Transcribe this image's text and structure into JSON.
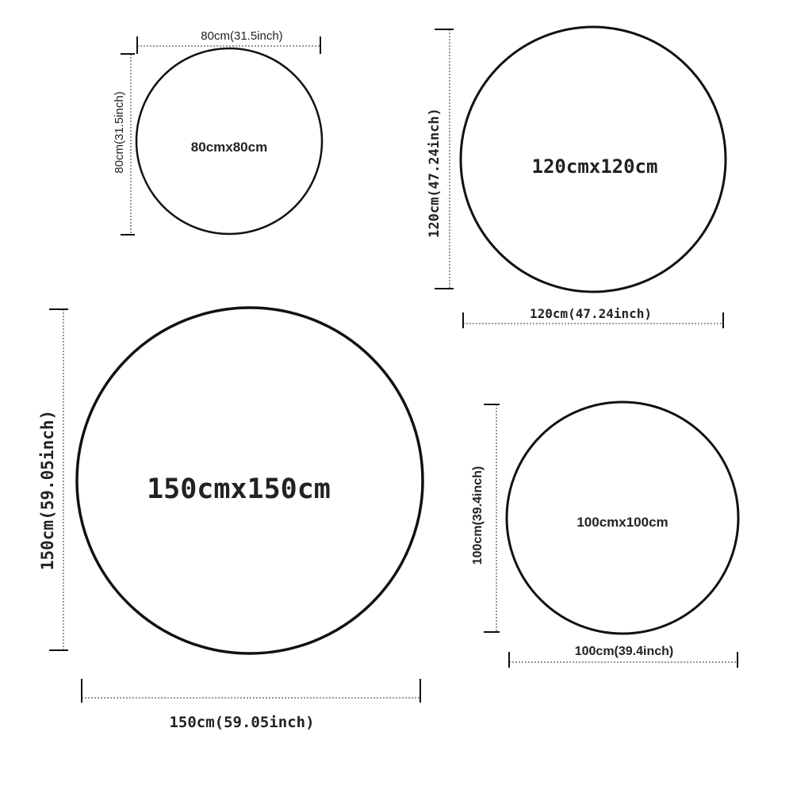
{
  "colors": {
    "line": "#111111",
    "dimension": "#777777",
    "background": "#ffffff"
  },
  "circles": [
    {
      "label": "80cmx80cm",
      "width_label": "80cm(31.5inch)",
      "height_label": "80cm(31.5inch)"
    },
    {
      "label": "120cmx120cm",
      "width_label": "120cm(47.24inch)",
      "height_label": "120cm(47.24inch)"
    },
    {
      "label": "150cmx150cm",
      "width_label": "150cm(59.05inch)",
      "height_label": "150cm(59.05inch)"
    },
    {
      "label": "100cmx100cm",
      "width_label": "100cm(39.4inch)",
      "height_label": "100cm(39.4inch)"
    }
  ]
}
